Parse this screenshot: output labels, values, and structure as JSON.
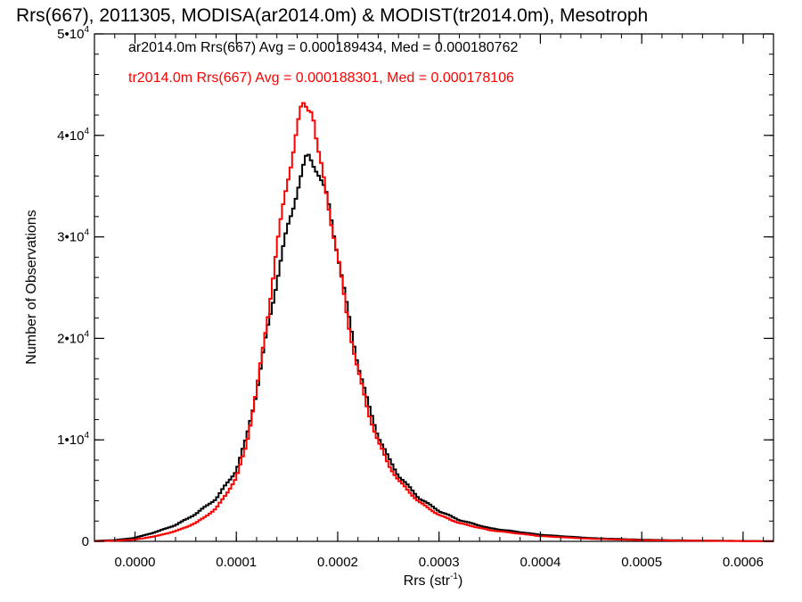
{
  "chart_data": {
    "type": "histogram-step",
    "title": "Rrs(667), 2011305, MODISA(ar2014.0m) & MODIST(tr2014.0m), Mesotroph",
    "xlabel": "Rrs (str",
    "xlabel_sup": "-1",
    "xlabel_suffix": ")",
    "ylabel": "Number of Observations",
    "xlim": [
      -4e-05,
      0.00063
    ],
    "ylim": [
      0,
      50000
    ],
    "x_ticks": [
      0.0,
      0.0001,
      0.0002,
      0.0003,
      0.0004,
      0.0005,
      0.0006
    ],
    "x_tick_labels": [
      "0.0000",
      "0.0001",
      "0.0002",
      "0.0003",
      "0.0004",
      "0.0005",
      "0.0006"
    ],
    "y_ticks": [
      {
        "value": 0,
        "label": "0",
        "exp": ""
      },
      {
        "value": 10000,
        "label": "1•10",
        "exp": "4"
      },
      {
        "value": 20000,
        "label": "2•10",
        "exp": "4"
      },
      {
        "value": 30000,
        "label": "3•10",
        "exp": "4"
      },
      {
        "value": 40000,
        "label": "4•10",
        "exp": "4"
      },
      {
        "value": 50000,
        "label": "5•10",
        "exp": "4"
      }
    ],
    "grid": false,
    "annotations": [
      {
        "text": "ar2014.0m Rrs(667) Avg = 0.000189434, Med = 0.000180762",
        "color": "#000000"
      },
      {
        "text": "tr2014.0m Rrs(667) Avg = 0.000188301, Med = 0.000178106",
        "color": "#ff0000"
      }
    ],
    "series": [
      {
        "color": "#000000",
        "points": [
          [
            -4e-05,
            40
          ],
          [
            -2e-05,
            120
          ],
          [
            0.0,
            350
          ],
          [
            2e-05,
            900
          ],
          [
            4e-05,
            1600
          ],
          [
            6e-05,
            2700
          ],
          [
            8e-05,
            4200
          ],
          [
            0.0001,
            7000
          ],
          [
            0.00011,
            10200
          ],
          [
            0.00012,
            14800
          ],
          [
            0.00013,
            20500
          ],
          [
            0.00014,
            25800
          ],
          [
            0.00015,
            30500
          ],
          [
            0.00016,
            34800
          ],
          [
            0.00017,
            37800
          ],
          [
            0.000175,
            37500
          ],
          [
            0.00018,
            36800
          ],
          [
            0.00019,
            33500
          ],
          [
            0.0002,
            28500
          ],
          [
            0.00021,
            22500
          ],
          [
            0.00022,
            17500
          ],
          [
            0.00023,
            13500
          ],
          [
            0.00024,
            10400
          ],
          [
            0.00025,
            8200
          ],
          [
            0.00026,
            6500
          ],
          [
            0.00028,
            4300
          ],
          [
            0.0003,
            3000
          ],
          [
            0.00032,
            2100
          ],
          [
            0.00035,
            1300
          ],
          [
            0.0004,
            650
          ],
          [
            0.00045,
            320
          ],
          [
            0.0005,
            160
          ],
          [
            0.00055,
            80
          ],
          [
            0.0006,
            40
          ],
          [
            0.00063,
            20
          ]
        ]
      },
      {
        "color": "#ff0000",
        "points": [
          [
            -4e-05,
            20
          ],
          [
            -2e-05,
            60
          ],
          [
            0.0,
            170
          ],
          [
            2e-05,
            500
          ],
          [
            4e-05,
            1000
          ],
          [
            6e-05,
            1800
          ],
          [
            8e-05,
            3200
          ],
          [
            0.0001,
            6200
          ],
          [
            0.00011,
            9600
          ],
          [
            0.00012,
            14800
          ],
          [
            0.00013,
            21500
          ],
          [
            0.00014,
            28800
          ],
          [
            0.00015,
            35500
          ],
          [
            0.00016,
            40500
          ],
          [
            0.000165,
            42800
          ],
          [
            0.00017,
            43000
          ],
          [
            0.000175,
            42900
          ],
          [
            0.00018,
            38500
          ],
          [
            0.00019,
            33800
          ],
          [
            0.0002,
            28000
          ],
          [
            0.00021,
            21800
          ],
          [
            0.00022,
            16800
          ],
          [
            0.00023,
            12800
          ],
          [
            0.00024,
            9800
          ],
          [
            0.00025,
            7600
          ],
          [
            0.00026,
            6000
          ],
          [
            0.00028,
            3900
          ],
          [
            0.0003,
            2600
          ],
          [
            0.00032,
            1800
          ],
          [
            0.00035,
            1100
          ],
          [
            0.0004,
            520
          ],
          [
            0.00045,
            250
          ],
          [
            0.0005,
            120
          ],
          [
            0.00055,
            60
          ],
          [
            0.0006,
            30
          ],
          [
            0.00063,
            15
          ]
        ]
      }
    ]
  }
}
